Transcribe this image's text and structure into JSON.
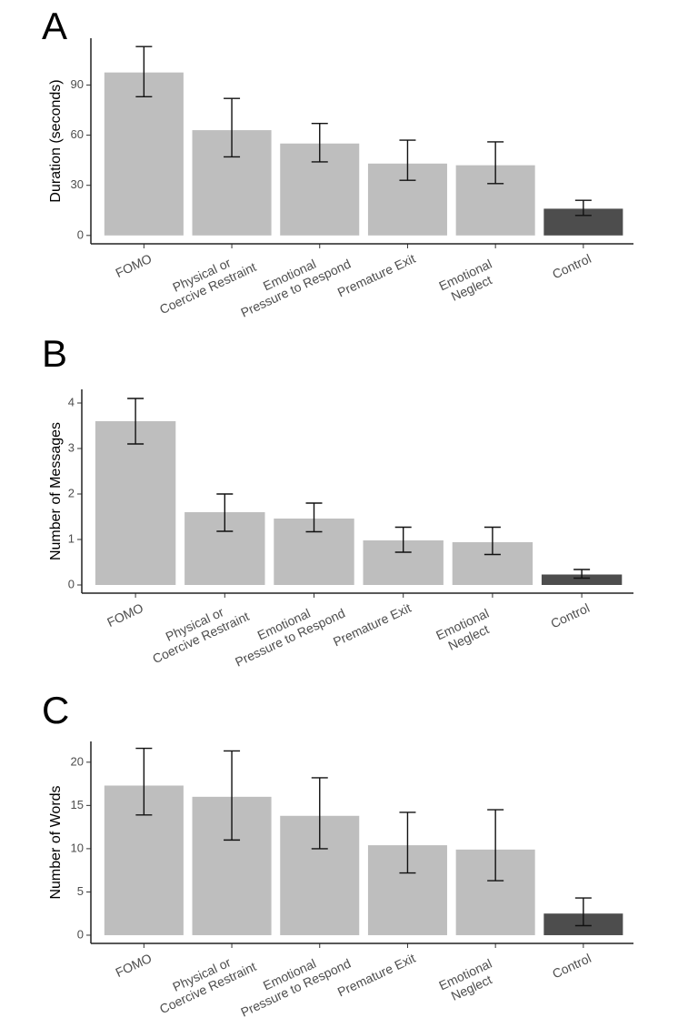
{
  "chart_data": [
    {
      "type": "bar",
      "label": "A",
      "y_label": "Duration (seconds)",
      "categories": [
        "FOMO",
        "Physical or\nCoercive Restraint",
        "Emotional\nPressure to Respond",
        "Premature Exit",
        "Emotional\nNeglect",
        "Control"
      ],
      "values": [
        97.5,
        63,
        55,
        43,
        42,
        16
      ],
      "error_low": [
        83,
        47,
        44,
        33,
        31,
        12
      ],
      "error_high": [
        113,
        82,
        67,
        57,
        56,
        21
      ],
      "colors": [
        "#bebebe",
        "#bebebe",
        "#bebebe",
        "#bebebe",
        "#bebebe",
        "#4d4d4d"
      ],
      "ylim": [
        -5,
        118
      ],
      "yticks": [
        0,
        30,
        60,
        90
      ]
    },
    {
      "type": "bar",
      "label": "B",
      "y_label": "Number of Messages",
      "categories": [
        "FOMO",
        "Physical or\nCoercive Restraint",
        "Emotional\nPressure to Respond",
        "Premature Exit",
        "Emotional\nNeglect",
        "Control"
      ],
      "values": [
        3.6,
        1.6,
        1.46,
        0.98,
        0.94,
        0.23
      ],
      "error_low": [
        3.1,
        1.18,
        1.17,
        0.72,
        0.67,
        0.15
      ],
      "error_high": [
        4.1,
        2.0,
        1.8,
        1.27,
        1.27,
        0.34
      ],
      "colors": [
        "#bebebe",
        "#bebebe",
        "#bebebe",
        "#bebebe",
        "#bebebe",
        "#4d4d4d"
      ],
      "ylim": [
        -0.18,
        4.3
      ],
      "yticks": [
        0,
        1,
        2,
        3,
        4
      ]
    },
    {
      "type": "bar",
      "label": "C",
      "y_label": "Number of Words",
      "categories": [
        "FOMO",
        "Physical or\nCoercive Restraint",
        "Emotional\nPressure to Respond",
        "Premature Exit",
        "Emotional\nNeglect",
        "Control"
      ],
      "values": [
        17.3,
        16.0,
        13.8,
        10.4,
        9.9,
        2.5
      ],
      "error_low": [
        13.9,
        11.0,
        10.0,
        7.2,
        6.3,
        1.1
      ],
      "error_high": [
        21.6,
        21.3,
        18.2,
        14.2,
        14.5,
        4.3
      ],
      "colors": [
        "#bebebe",
        "#bebebe",
        "#bebebe",
        "#bebebe",
        "#bebebe",
        "#4d4d4d"
      ],
      "ylim": [
        -0.95,
        22.4
      ],
      "yticks": [
        0,
        5,
        10,
        15,
        20
      ]
    }
  ]
}
